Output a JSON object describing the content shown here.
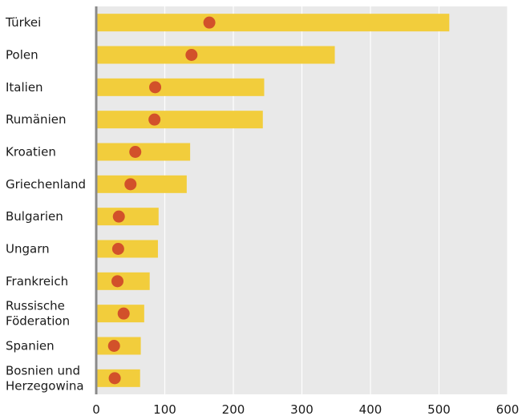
{
  "chart_data": {
    "type": "bar",
    "orientation": "horizontal",
    "categories": [
      "Türkei",
      "Polen",
      "Italien",
      "Rumänien",
      "Kroatien",
      "Griechenland",
      "Bulgarien",
      "Ungarn",
      "Frankreich",
      "Russische Föderation",
      "Spanien",
      "Bosnien und Herzegowina"
    ],
    "category_lines": [
      [
        "Türkei"
      ],
      [
        "Polen"
      ],
      [
        "Italien"
      ],
      [
        "Rumänien"
      ],
      [
        "Kroatien"
      ],
      [
        "Griechenland"
      ],
      [
        "Bulgarien"
      ],
      [
        "Ungarn"
      ],
      [
        "Frankreich"
      ],
      [
        "Russische",
        "Föderation"
      ],
      [
        "Spanien"
      ],
      [
        "Bosnien und",
        "Herzegowina"
      ]
    ],
    "series": [
      {
        "type": "bar",
        "values": [
          515,
          348,
          245,
          243,
          137,
          132,
          91,
          90,
          78,
          70,
          65,
          64
        ],
        "color": "#f2cd3c"
      },
      {
        "type": "dot",
        "values": [
          165,
          139,
          86,
          85,
          57,
          50,
          33,
          32,
          31,
          40,
          26,
          27
        ],
        "color": "#d2512a"
      }
    ],
    "xlim": [
      0,
      600
    ],
    "xticks": [
      0,
      100,
      200,
      300,
      400,
      500,
      600
    ],
    "xlabel": "",
    "ylabel": "",
    "title": "",
    "grid": true,
    "background": "#e9e9e9",
    "axis_color": "#8a8a8a"
  }
}
